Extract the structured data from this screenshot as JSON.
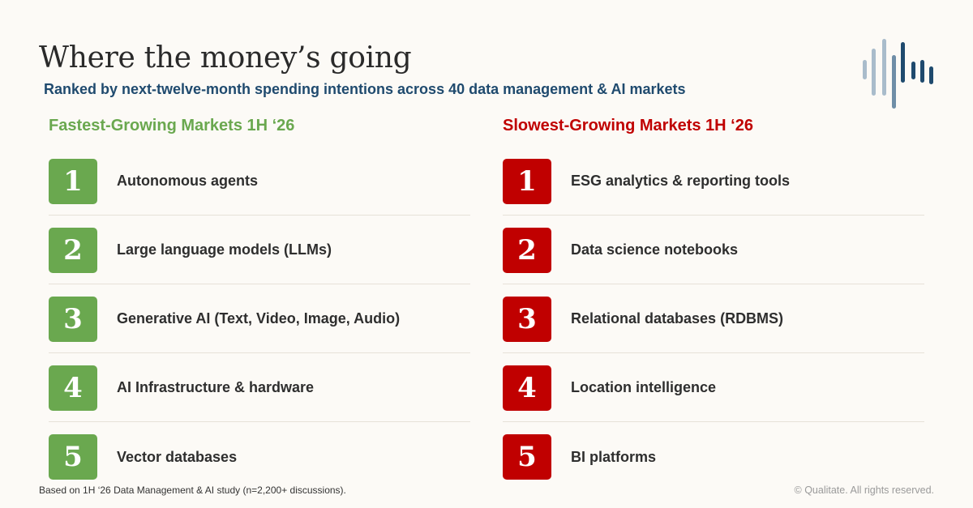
{
  "header": {
    "title": "Where the money’s going",
    "subtitle": "Ranked by next-twelve-month spending intentions across 40 data management & AI markets"
  },
  "colors": {
    "fast": "#6aa84f",
    "slow": "#c00000",
    "subtitle": "#1f4a6e",
    "logo_light": "#a9bccb",
    "logo_mid": "#6f8ea7",
    "logo_dark": "#1f4a6e"
  },
  "fastest": {
    "heading": "Fastest-Growing Markets 1H ‘26",
    "items": [
      {
        "rank": "1",
        "label": "Autonomous agents"
      },
      {
        "rank": "2",
        "label": "Large language models (LLMs)"
      },
      {
        "rank": "3",
        "label": "Generative AI (Text, Video, Image, Audio)"
      },
      {
        "rank": "4",
        "label": "AI Infrastructure & hardware"
      },
      {
        "rank": "5",
        "label": "Vector databases"
      }
    ]
  },
  "slowest": {
    "heading": "Slowest-Growing Markets 1H ‘26",
    "items": [
      {
        "rank": "1",
        "label": "ESG analytics & reporting tools"
      },
      {
        "rank": "2",
        "label": "Data science notebooks"
      },
      {
        "rank": "3",
        "label": "Relational databases (RDBMS)"
      },
      {
        "rank": "4",
        "label": "Location intelligence"
      },
      {
        "rank": "5",
        "label": "BI platforms"
      }
    ]
  },
  "footer": {
    "note": "Based on 1H ‘26 Data Management & AI study (n=2,200+ discussions).",
    "copyright": "© Qualitate. All rights reserved."
  },
  "logo": {
    "icon": "soundwave-bars-icon"
  }
}
